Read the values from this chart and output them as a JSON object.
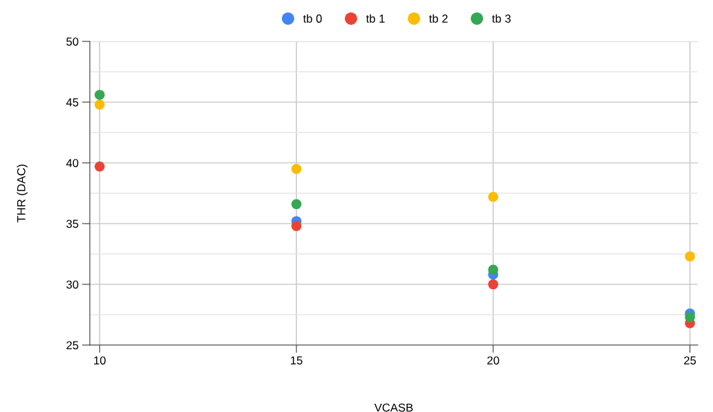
{
  "chart_data": {
    "type": "scatter",
    "xlabel": "VCASB",
    "ylabel": "THR (DAC)",
    "x": [
      10,
      15,
      20,
      25
    ],
    "series": [
      {
        "name": "tb 0",
        "color": "#4285f4",
        "values": [
          null,
          35.2,
          30.8,
          27.6
        ]
      },
      {
        "name": "tb 1",
        "color": "#ea4335",
        "values": [
          39.7,
          34.8,
          30.0,
          26.8
        ]
      },
      {
        "name": "tb 2",
        "color": "#fbbc04",
        "values": [
          44.8,
          39.5,
          37.2,
          32.3
        ]
      },
      {
        "name": "tb 3",
        "color": "#34a853",
        "values": [
          45.6,
          36.6,
          31.2,
          27.3
        ]
      }
    ],
    "xlim": [
      9.75,
      25.2
    ],
    "xticks": [
      10,
      15,
      20,
      25
    ],
    "ylim": [
      25,
      50
    ],
    "yticks": [
      25,
      {
        "value": 27.5,
        "label": null
      },
      30,
      {
        "value": 32.5,
        "label": null
      },
      35,
      {
        "value": 37.5,
        "label": null
      },
      40,
      {
        "value": 42.5,
        "label": null
      },
      45,
      {
        "value": 47.5,
        "label": null
      },
      50
    ],
    "grid": true,
    "legend": "top",
    "marker": "circle"
  }
}
